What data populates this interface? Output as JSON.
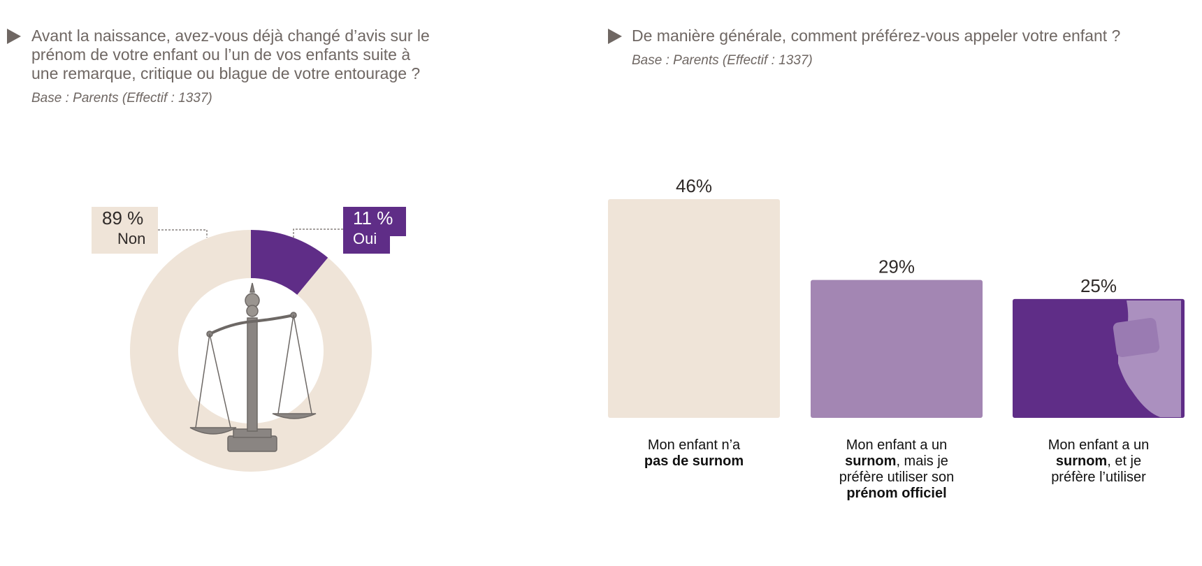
{
  "left": {
    "title": "Avant la naissance, avez-vous déjà changé d’avis sur le\nprénom de votre enfant ou l’un de vos enfants suite à\nune remarque, critique ou blague de votre entourage ?",
    "base": "Base : Parents (Effectif : 1337)"
  },
  "right": {
    "title": "De manière générale, comment préférez-vous appeler votre enfant ?",
    "base": "Base : Parents (Effectif : 1337)"
  },
  "colors": {
    "cream": "#efe4d8",
    "light_purple": "#a386b3",
    "purple": "#5f2d87",
    "grey_text": "#6f6763"
  },
  "chart_data": [
    {
      "type": "pie",
      "variant": "donut",
      "slices": [
        {
          "label": "Oui",
          "value": 11,
          "value_label": "11 %",
          "color": "#5f2d87"
        },
        {
          "label": "Non",
          "value": 89,
          "value_label": "89 %",
          "color": "#efe4d8"
        }
      ]
    },
    {
      "type": "bar",
      "categories": [
        "Mon enfant n’a pas de surnom",
        "Mon enfant a un surnom, mais je préfère utiliser son prénom officiel",
        "Mon enfant a un surnom, et je préfère l’utiliser"
      ],
      "values": [
        46,
        29,
        25
      ],
      "value_labels": [
        "46%",
        "29%",
        "25%"
      ],
      "colors": [
        "#efe4d8",
        "#a386b3",
        "#5f2d87"
      ],
      "captions": [
        [
          {
            "t": "Mon enfant n’a",
            "b": false
          },
          {
            "t": "\n",
            "b": false
          },
          {
            "t": "pas de surnom",
            "b": true
          }
        ],
        [
          {
            "t": "Mon enfant a un",
            "b": false
          },
          {
            "t": "\n",
            "b": false
          },
          {
            "t": "surnom",
            "b": true
          },
          {
            "t": ", mais je",
            "b": false
          },
          {
            "t": "\n",
            "b": false
          },
          {
            "t": "préfère utiliser son",
            "b": false
          },
          {
            "t": "\n",
            "b": false
          },
          {
            "t": "prénom officiel",
            "b": true
          }
        ],
        [
          {
            "t": "Mon enfant a un",
            "b": false
          },
          {
            "t": "\n",
            "b": false
          },
          {
            "t": "surnom",
            "b": true
          },
          {
            "t": ", et je",
            "b": false
          },
          {
            "t": "\n",
            "b": false
          },
          {
            "t": "préfère l’utiliser",
            "b": false
          }
        ]
      ]
    }
  ]
}
